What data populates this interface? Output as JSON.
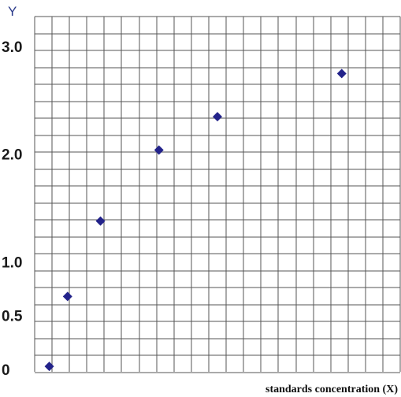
{
  "chart_data": {
    "type": "scatter",
    "title": "",
    "xlabel": "standards concentration (X)",
    "ylabel": "Y",
    "y_ticks": [
      {
        "label": "0",
        "value": 0
      },
      {
        "label": "0.5",
        "value": 0.5
      },
      {
        "label": "1.0",
        "value": 1.0
      },
      {
        "label": "2.0",
        "value": 2.0
      },
      {
        "label": "3.0",
        "value": 3.0
      }
    ],
    "ylim": [
      0,
      3.3
    ],
    "xlim": [
      0,
      1
    ],
    "grid": true,
    "x_ticks": [],
    "series": [
      {
        "color": "#22228a",
        "marker": "diamond",
        "points": [
          {
            "x": 0.04,
            "y": 0.05
          },
          {
            "x": 0.09,
            "y": 0.7
          },
          {
            "x": 0.18,
            "y": 1.4
          },
          {
            "x": 0.34,
            "y": 2.06
          },
          {
            "x": 0.5,
            "y": 2.37
          },
          {
            "x": 0.84,
            "y": 2.77
          }
        ]
      }
    ]
  }
}
